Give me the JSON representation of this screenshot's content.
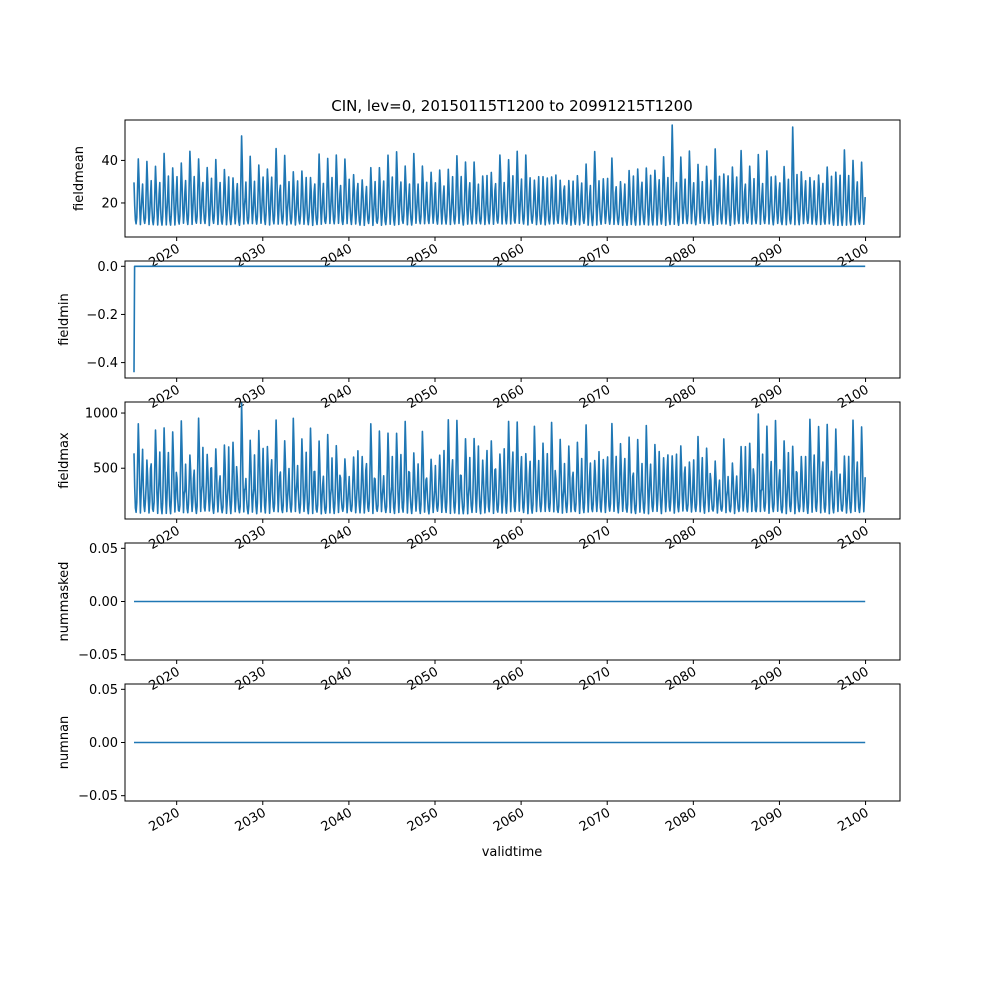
{
  "title": "CIN, lev=0, 20150115T1200 to 20991215T1200",
  "colors": {
    "line": "#1f77b4",
    "axes": "#000000",
    "background": "#ffffff"
  },
  "chart_data": [
    {
      "type": "line",
      "ylabel": "fieldmean",
      "xlabel": "",
      "xlim": [
        2014.0,
        2104.0
      ],
      "ylim": [
        4,
        59
      ],
      "yticks": [
        20,
        40
      ],
      "ytick_labels": [
        "20",
        "40"
      ],
      "xticks": [
        2020,
        2030,
        2040,
        2050,
        2060,
        2070,
        2080,
        2090,
        2100
      ],
      "xtick_labels": [
        "2020",
        "2030",
        "2040",
        "2050",
        "2060",
        "2070",
        "2080",
        "2090",
        "2100"
      ],
      "series": [
        {
          "x_start": 2015.04,
          "x_end": 2099.96,
          "pattern": "seasonal",
          "min": 10,
          "summer_peak_range": [
            30,
            46
          ],
          "winter_bump_range": [
            28,
            33
          ],
          "outlier_peaks": [
            {
              "year": 2027,
              "value": 51
            },
            {
              "year": 2077,
              "value": 57
            },
            {
              "year": 2091,
              "value": 56
            }
          ]
        }
      ]
    },
    {
      "type": "line",
      "ylabel": "fieldmin",
      "xlabel": "",
      "xlim": [
        2014.0,
        2104.0
      ],
      "ylim": [
        -0.464,
        0.022
      ],
      "yticks": [
        -0.4,
        -0.2,
        0.0
      ],
      "ytick_labels": [
        "−0.4",
        "−0.2",
        "0.0"
      ],
      "xticks": [
        2020,
        2030,
        2040,
        2050,
        2060,
        2070,
        2080,
        2090,
        2100
      ],
      "xtick_labels": [
        "2020",
        "2030",
        "2040",
        "2050",
        "2060",
        "2070",
        "2080",
        "2090",
        "2100"
      ],
      "series": [
        {
          "x": [
            2015.04,
            2015.12,
            2099.96
          ],
          "y": [
            -0.44,
            0.0,
            0.0
          ]
        }
      ]
    },
    {
      "type": "line",
      "ylabel": "fieldmax",
      "xlabel": "",
      "xlim": [
        2014.0,
        2104.0
      ],
      "ylim": [
        40,
        1100
      ],
      "yticks": [
        500,
        1000
      ],
      "ytick_labels": [
        "500",
        "1000"
      ],
      "xticks": [
        2020,
        2030,
        2040,
        2050,
        2060,
        2070,
        2080,
        2090,
        2100
      ],
      "xtick_labels": [
        "2020",
        "2030",
        "2040",
        "2050",
        "2060",
        "2070",
        "2080",
        "2090",
        "2100"
      ],
      "series": [
        {
          "x_start": 2015.04,
          "x_end": 2099.96,
          "pattern": "seasonal",
          "min": 100,
          "summer_peak_range": [
            550,
            950
          ],
          "winter_bump_range": [
            400,
            700
          ],
          "outlier_peaks": [
            {
              "year": 2027,
              "value": 1080
            },
            {
              "year": 2087,
              "value": 1000
            }
          ]
        }
      ]
    },
    {
      "type": "line",
      "ylabel": "nummasked",
      "xlabel": "",
      "xlim": [
        2014.0,
        2104.0
      ],
      "ylim": [
        -0.055,
        0.055
      ],
      "yticks": [
        -0.05,
        0.0,
        0.05
      ],
      "ytick_labels": [
        "−0.05",
        "0.00",
        "0.05"
      ],
      "xticks": [
        2020,
        2030,
        2040,
        2050,
        2060,
        2070,
        2080,
        2090,
        2100
      ],
      "xtick_labels": [
        "2020",
        "2030",
        "2040",
        "2050",
        "2060",
        "2070",
        "2080",
        "2090",
        "2100"
      ],
      "series": [
        {
          "x": [
            2015.04,
            2099.96
          ],
          "y": [
            0.0,
            0.0
          ]
        }
      ]
    },
    {
      "type": "line",
      "ylabel": "numnan",
      "xlabel": "validtime",
      "xlim": [
        2014.0,
        2104.0
      ],
      "ylim": [
        -0.055,
        0.055
      ],
      "yticks": [
        -0.05,
        0.0,
        0.05
      ],
      "ytick_labels": [
        "−0.05",
        "0.00",
        "0.05"
      ],
      "xticks": [
        2020,
        2030,
        2040,
        2050,
        2060,
        2070,
        2080,
        2090,
        2100
      ],
      "xtick_labels": [
        "2020",
        "2030",
        "2040",
        "2050",
        "2060",
        "2070",
        "2080",
        "2090",
        "2100"
      ],
      "series": [
        {
          "x": [
            2015.04,
            2099.96
          ],
          "y": [
            0.0,
            0.0
          ]
        }
      ]
    }
  ]
}
